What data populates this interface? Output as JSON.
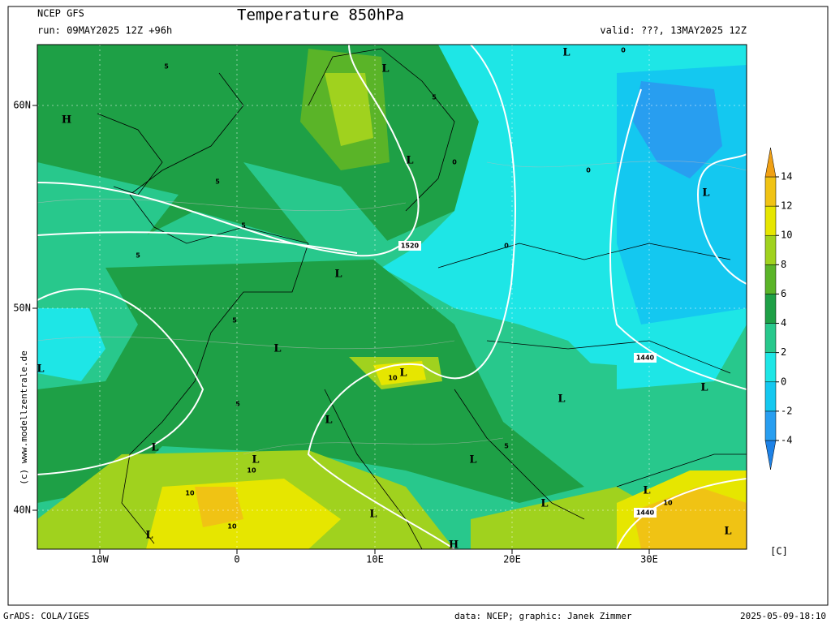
{
  "header": {
    "model": "NCEP GFS",
    "run": "run: 09MAY2025 12Z +96h",
    "title": "Temperature 850hPa",
    "valid": "valid: ???, 13MAY2025 12Z"
  },
  "map": {
    "lon_labels": [
      "10W",
      "0",
      "10E",
      "20E",
      "30E"
    ],
    "lat_labels": [
      "60N",
      "50N",
      "40N"
    ],
    "pressure_labels": [
      "H",
      "L",
      "L",
      "L",
      "L",
      "L",
      "L",
      "L",
      "L",
      "L",
      "L",
      "L",
      "L",
      "L",
      "L",
      "L",
      "L",
      "L",
      "L",
      "L",
      "H"
    ],
    "contour_labels": [
      1520,
      1440,
      1440,
      10,
      10,
      10,
      10,
      10,
      5,
      5,
      5,
      5,
      5,
      5,
      5,
      5,
      0,
      0,
      0,
      0
    ]
  },
  "colorbar": {
    "ticks": [
      -4,
      -2,
      0,
      2,
      4,
      6,
      8,
      10,
      12,
      14
    ],
    "colors": [
      "#1e82e6",
      "#289ef0",
      "#14c8f0",
      "#1ee6e6",
      "#28c88c",
      "#1ea046",
      "#5ab428",
      "#a0d21e",
      "#e6e600",
      "#f0c314",
      "#f0a014"
    ],
    "unit": "[C]"
  },
  "side": "(c) www.modellzentrale.de",
  "footer": {
    "left": "GrADS: COLA/IGES",
    "credit": "data: NCEP; graphic: Janek Zimmer",
    "timestamp": "2025-05-09-18:10"
  }
}
